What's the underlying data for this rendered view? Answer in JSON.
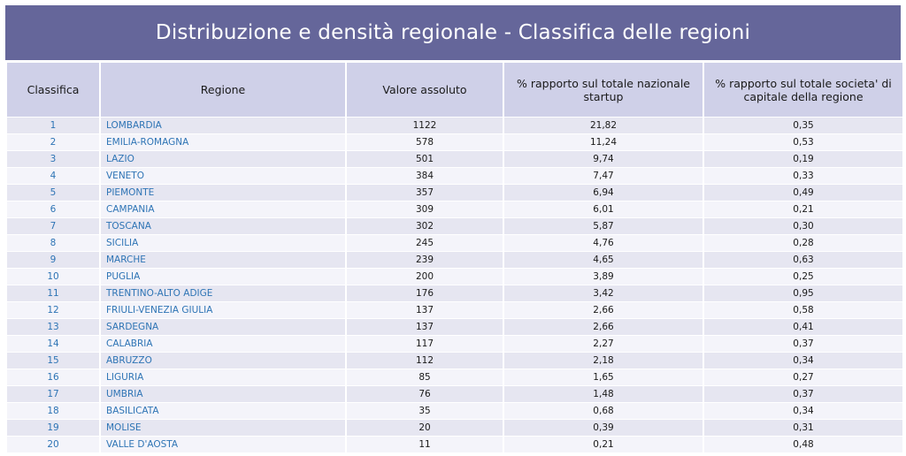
{
  "title": "Distribuzione e densità regionale - Classifica delle regioni",
  "headers": [
    "Classifica",
    "Regione",
    "Valore assoluto",
    "% rapporto sul totale nazionale startup",
    "% rapporto sul totale societa' di capitale della regione"
  ],
  "rows": [
    {
      "rank": "1",
      "region": "LOMBARDIA",
      "value": "1122",
      "pct_national": "21,82",
      "pct_regional": "0,35"
    },
    {
      "rank": "2",
      "region": "EMILIA-ROMAGNA",
      "value": "578",
      "pct_national": "11,24",
      "pct_regional": "0,53"
    },
    {
      "rank": "3",
      "region": "LAZIO",
      "value": "501",
      "pct_national": "9,74",
      "pct_regional": "0,19"
    },
    {
      "rank": "4",
      "region": "VENETO",
      "value": "384",
      "pct_national": "7,47",
      "pct_regional": "0,33"
    },
    {
      "rank": "5",
      "region": "PIEMONTE",
      "value": "357",
      "pct_national": "6,94",
      "pct_regional": "0,49"
    },
    {
      "rank": "6",
      "region": "CAMPANIA",
      "value": "309",
      "pct_national": "6,01",
      "pct_regional": "0,21"
    },
    {
      "rank": "7",
      "region": "TOSCANA",
      "value": "302",
      "pct_national": "5,87",
      "pct_regional": "0,30"
    },
    {
      "rank": "8",
      "region": "SICILIA",
      "value": "245",
      "pct_national": "4,76",
      "pct_regional": "0,28"
    },
    {
      "rank": "9",
      "region": "MARCHE",
      "value": "239",
      "pct_national": "4,65",
      "pct_regional": "0,63"
    },
    {
      "rank": "10",
      "region": "PUGLIA",
      "value": "200",
      "pct_national": "3,89",
      "pct_regional": "0,25"
    },
    {
      "rank": "11",
      "region": "TRENTINO-ALTO ADIGE",
      "value": "176",
      "pct_national": "3,42",
      "pct_regional": "0,95"
    },
    {
      "rank": "12",
      "region": "FRIULI-VENEZIA GIULIA",
      "value": "137",
      "pct_national": "2,66",
      "pct_regional": "0,58"
    },
    {
      "rank": "13",
      "region": "SARDEGNA",
      "value": "137",
      "pct_national": "2,66",
      "pct_regional": "0,41"
    },
    {
      "rank": "14",
      "region": "CALABRIA",
      "value": "117",
      "pct_national": "2,27",
      "pct_regional": "0,37"
    },
    {
      "rank": "15",
      "region": "ABRUZZO",
      "value": "112",
      "pct_national": "2,18",
      "pct_regional": "0,34"
    },
    {
      "rank": "16",
      "region": "LIGURIA",
      "value": "85",
      "pct_national": "1,65",
      "pct_regional": "0,27"
    },
    {
      "rank": "17",
      "region": "UMBRIA",
      "value": "76",
      "pct_national": "1,48",
      "pct_regional": "0,37"
    },
    {
      "rank": "18",
      "region": "BASILICATA",
      "value": "35",
      "pct_national": "0,68",
      "pct_regional": "0,34"
    },
    {
      "rank": "19",
      "region": "MOLISE",
      "value": "20",
      "pct_national": "0,39",
      "pct_regional": "0,31"
    },
    {
      "rank": "20",
      "region": "VALLE D'AOSTA",
      "value": "11",
      "pct_national": "0,21",
      "pct_regional": "0,48"
    }
  ],
  "colors": {
    "banner": "#65669a",
    "header_bg": "#cfd0e8",
    "row_odd": "#e6e6f1",
    "row_even": "#f4f4fa",
    "link_text": "#2e74b5"
  }
}
